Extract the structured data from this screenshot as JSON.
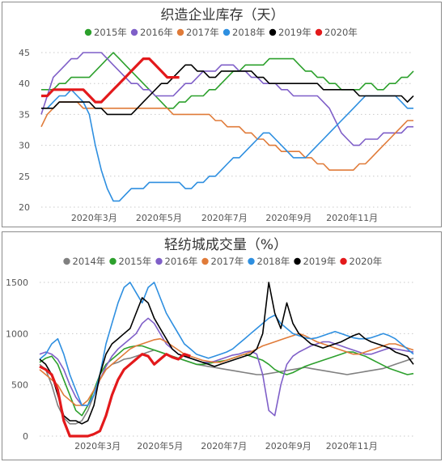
{
  "colors": {
    "2014": "#808080",
    "2015": "#2ca02c",
    "2016": "#7f5fc8",
    "2017": "#e07b39",
    "2018": "#2e8fe0",
    "2019": "#000000",
    "2020": "#e3191b"
  },
  "chart_data": [
    {
      "type": "line",
      "title": "织造企业库存（天）",
      "xlabel": "",
      "ylabel": "",
      "ylim": [
        20,
        45
      ],
      "yticks": [
        "20",
        "25",
        "30",
        "35",
        "40",
        "45"
      ],
      "xticks": [
        "2020年3月",
        "2020年5月",
        "2020年7月",
        "2020年9月",
        "2020年11月"
      ],
      "grid": "horizontal dotted",
      "legend_position": "top",
      "series": [
        {
          "name": "2015年",
          "color_key": "2015",
          "values": [
            39,
            39,
            39,
            40,
            40,
            41,
            41,
            41,
            41,
            42,
            43,
            44,
            45,
            44,
            43,
            42,
            41,
            40,
            39,
            38,
            37,
            36,
            36,
            37,
            37,
            38,
            38,
            38,
            39,
            39,
            40,
            41,
            42,
            42,
            43,
            43,
            43,
            43,
            44,
            44,
            44,
            44,
            44,
            43,
            42,
            42,
            41,
            41,
            40,
            40,
            39,
            39,
            39,
            39,
            40,
            40,
            39,
            39,
            40,
            40,
            41,
            41,
            42
          ]
        },
        {
          "name": "2016年",
          "color_key": "2016",
          "values": [
            35,
            38,
            41,
            42,
            43,
            44,
            44,
            45,
            45,
            45,
            45,
            44,
            43,
            42,
            41,
            40,
            40,
            39,
            39,
            38,
            38,
            38,
            38,
            39,
            40,
            40,
            41,
            42,
            42,
            42,
            43,
            43,
            43,
            42,
            42,
            41,
            41,
            40,
            40,
            40,
            39,
            39,
            38,
            38,
            38,
            38,
            38,
            37,
            36,
            34,
            32,
            31,
            30,
            30,
            31,
            31,
            31,
            32,
            32,
            32,
            32,
            33,
            33
          ]
        },
        {
          "name": "2017年",
          "color_key": "2017",
          "values": [
            33,
            35,
            36,
            37,
            37,
            37,
            37,
            36,
            36,
            36,
            36,
            36,
            36,
            36,
            36,
            36,
            36,
            36,
            36,
            36,
            36,
            36,
            35,
            35,
            35,
            35,
            35,
            35,
            35,
            34,
            34,
            33,
            33,
            33,
            32,
            32,
            31,
            31,
            30,
            30,
            29,
            29,
            29,
            29,
            28,
            28,
            27,
            27,
            26,
            26,
            26,
            26,
            26,
            27,
            27,
            28,
            29,
            30,
            31,
            32,
            33,
            34,
            34
          ]
        },
        {
          "name": "2018年",
          "color_key": "2018",
          "values": [
            36,
            36,
            37,
            38,
            38,
            39,
            38,
            37,
            35,
            30,
            26,
            23,
            21,
            21,
            22,
            23,
            23,
            23,
            24,
            24,
            24,
            24,
            24,
            24,
            23,
            23,
            24,
            24,
            25,
            25,
            26,
            27,
            28,
            28,
            29,
            30,
            31,
            32,
            32,
            31,
            30,
            29,
            28,
            28,
            28,
            29,
            30,
            31,
            32,
            33,
            34,
            35,
            36,
            37,
            38,
            38,
            38,
            38,
            38,
            38,
            37,
            36,
            36
          ]
        },
        {
          "name": "2019年",
          "color_key": "2019",
          "values": [
            36,
            36,
            36,
            37,
            37,
            37,
            37,
            37,
            37,
            36,
            36,
            35,
            35,
            35,
            35,
            35,
            36,
            37,
            38,
            39,
            40,
            40,
            41,
            42,
            43,
            43,
            42,
            42,
            41,
            41,
            42,
            42,
            42,
            42,
            42,
            42,
            41,
            41,
            40,
            40,
            40,
            40,
            40,
            40,
            40,
            40,
            40,
            39,
            39,
            39,
            39,
            39,
            39,
            38,
            38,
            38,
            38,
            38,
            38,
            38,
            38,
            37,
            38
          ]
        },
        {
          "name": "2020年",
          "color_key": "2020",
          "values": [
            38,
            38,
            39,
            39,
            39,
            39,
            39,
            39,
            38,
            37,
            37,
            38,
            39,
            40,
            41,
            42,
            43,
            44,
            44,
            43,
            42,
            41,
            41,
            41
          ]
        }
      ]
    },
    {
      "type": "line",
      "title": "轻纺城成交量（%）",
      "xlabel": "",
      "ylabel": "",
      "ylim": [
        0,
        1500
      ],
      "yticks": [
        "0",
        "500",
        "1000",
        "1500"
      ],
      "xticks": [
        "2020年3月",
        "2020年5月",
        "2020年7月",
        "2020年9月",
        "2020年11月"
      ],
      "grid": "horizontal dotted",
      "legend_position": "top",
      "series": [
        {
          "name": "2014年",
          "color_key": "2014",
          "values": [
            700,
            650,
            500,
            300,
            180,
            120,
            120,
            150,
            250,
            400,
            550,
            650,
            700,
            720,
            750,
            760,
            780,
            800,
            820,
            840,
            820,
            800,
            780,
            760,
            740,
            720,
            700,
            690,
            680,
            670,
            660,
            650,
            640,
            630,
            620,
            610,
            600,
            600,
            610,
            620,
            630,
            640,
            650,
            660,
            670,
            660,
            650,
            640,
            630,
            620,
            610,
            600,
            610,
            620,
            630,
            640,
            650,
            660,
            680,
            700,
            720,
            740,
            760
          ]
        },
        {
          "name": "2015年",
          "color_key": "2015",
          "values": [
            720,
            760,
            780,
            700,
            550,
            400,
            250,
            200,
            300,
            450,
            600,
            700,
            750,
            800,
            850,
            870,
            880,
            880,
            860,
            840,
            820,
            800,
            780,
            760,
            740,
            720,
            700,
            700,
            710,
            720,
            730,
            740,
            760,
            780,
            800,
            780,
            760,
            740,
            700,
            650,
            620,
            600,
            620,
            650,
            680,
            700,
            720,
            740,
            760,
            780,
            800,
            820,
            820,
            800,
            780,
            750,
            720,
            690,
            660,
            640,
            620,
            600,
            610
          ]
        },
        {
          "name": "2016年",
          "color_key": "2016",
          "values": [
            800,
            820,
            800,
            750,
            650,
            500,
            380,
            300,
            300,
            400,
            550,
            680,
            780,
            850,
            900,
            950,
            1000,
            1100,
            1150,
            1100,
            1000,
            900,
            850,
            800,
            780,
            760,
            740,
            720,
            720,
            730,
            750,
            770,
            790,
            800,
            820,
            830,
            800,
            600,
            250,
            200,
            500,
            700,
            780,
            820,
            850,
            880,
            900,
            920,
            920,
            900,
            880,
            860,
            840,
            820,
            800,
            800,
            820,
            840,
            860,
            850,
            840,
            830,
            820
          ]
        },
        {
          "name": "2017年",
          "color_key": "2017",
          "values": [
            650,
            600,
            550,
            500,
            400,
            350,
            300,
            300,
            350,
            450,
            550,
            650,
            700,
            750,
            800,
            850,
            880,
            900,
            920,
            940,
            950,
            920,
            880,
            840,
            800,
            780,
            760,
            740,
            730,
            720,
            720,
            740,
            760,
            780,
            800,
            820,
            850,
            880,
            900,
            920,
            940,
            960,
            980,
            1000,
            980,
            950,
            920,
            900,
            880,
            860,
            840,
            820,
            800,
            800,
            820,
            840,
            860,
            880,
            900,
            900,
            880,
            860,
            840
          ]
        },
        {
          "name": "2018年",
          "color_key": "2018",
          "values": [
            750,
            800,
            900,
            950,
            800,
            600,
            450,
            300,
            300,
            400,
            600,
            900,
            1100,
            1300,
            1450,
            1500,
            1400,
            1300,
            1450,
            1500,
            1350,
            1200,
            1100,
            1000,
            900,
            850,
            800,
            780,
            760,
            780,
            800,
            820,
            850,
            900,
            950,
            1000,
            1050,
            1100,
            1150,
            1180,
            1100,
            1050,
            1000,
            980,
            960,
            950,
            960,
            980,
            1000,
            1020,
            1000,
            980,
            960,
            950,
            950,
            960,
            980,
            1000,
            980,
            950,
            900,
            850,
            800
          ]
        },
        {
          "name": "2019年",
          "color_key": "2019",
          "values": [
            750,
            700,
            600,
            400,
            200,
            150,
            150,
            120,
            150,
            300,
            600,
            800,
            900,
            950,
            1000,
            1050,
            1200,
            1350,
            1300,
            1150,
            1050,
            950,
            850,
            800,
            780,
            760,
            740,
            720,
            700,
            680,
            700,
            720,
            740,
            760,
            780,
            800,
            850,
            1000,
            1500,
            1200,
            1050,
            1300,
            1100,
            1000,
            950,
            900,
            880,
            860,
            880,
            900,
            920,
            950,
            980,
            1000,
            950,
            920,
            900,
            880,
            860,
            820,
            800,
            780,
            700
          ]
        },
        {
          "name": "2020年",
          "color_key": "2020",
          "values": [
            680,
            650,
            600,
            450,
            150,
            0,
            0,
            0,
            0,
            20,
            50,
            200,
            400,
            550,
            650,
            700,
            750,
            800,
            780,
            700,
            750,
            800,
            770,
            750,
            800,
            780
          ]
        }
      ]
    }
  ]
}
